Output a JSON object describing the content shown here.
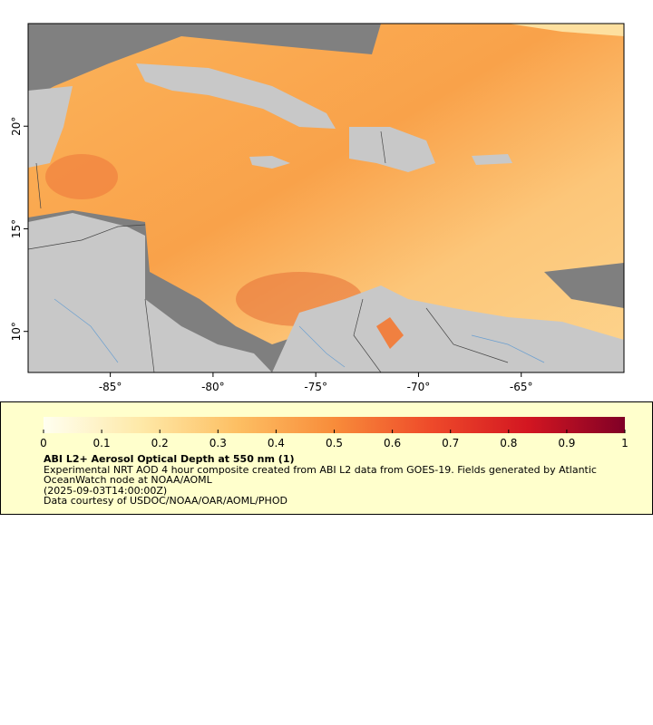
{
  "map": {
    "xlim": [
      -89,
      -60
    ],
    "ylim": [
      8,
      25
    ],
    "xticks": [
      {
        "value": -85,
        "label": "-85°"
      },
      {
        "value": -80,
        "label": "-80°"
      },
      {
        "value": -75,
        "label": "-75°"
      },
      {
        "value": -70,
        "label": "-70°"
      },
      {
        "value": -65,
        "label": "-65°"
      }
    ],
    "yticks": [
      {
        "value": 10,
        "label": "10°"
      },
      {
        "value": 15,
        "label": "15°"
      },
      {
        "value": 20,
        "label": "20°"
      }
    ]
  },
  "colorbar": {
    "range": [
      0,
      1
    ],
    "ticks": [
      0,
      0.1,
      0.2,
      0.3,
      0.4,
      0.5,
      0.6,
      0.7,
      0.8,
      0.9,
      1
    ],
    "colors": [
      "#fffff0",
      "#fee9a8",
      "#fdbf63",
      "#f88c3a",
      "#ee4a2a",
      "#d31621",
      "#800026"
    ]
  },
  "legend": {
    "title": "ABI L2+ Aerosol Optical Depth at 550 nm (1)",
    "description": "Experimental NRT AOD 4 hour composite created from ABI L2 data from GOES-19. Fields generated by Atlantic OceanWatch node at NOAA/AOML",
    "time": "(2025-09-03T14:00:00Z)",
    "credit": "Data courtesy of USDOC/NOAA/OAR/AOML/PHOD"
  }
}
